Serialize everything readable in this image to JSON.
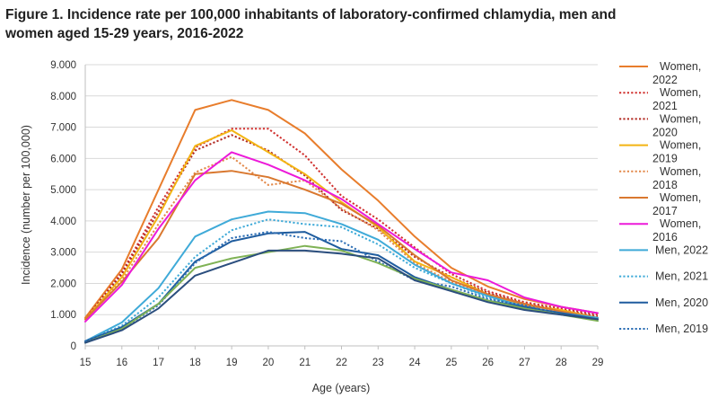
{
  "figure_title": "Figure 1. Incidence rate per 100,000 inhabitants of laboratory-confirmed chlamydia, men and women aged 15-29 years, 2016-2022",
  "chart_data": {
    "type": "line",
    "title": "Figure 1. Incidence rate per 100,000 inhabitants of laboratory-confirmed chlamydia, men and women aged 15-29 years, 2016-2022",
    "xlabel": "Age (years)",
    "ylabel": "Incidence (number per 100,000)",
    "x": [
      15,
      16,
      17,
      18,
      19,
      20,
      21,
      22,
      23,
      24,
      25,
      26,
      27,
      28,
      29
    ],
    "ylim": [
      0,
      9000
    ],
    "yticks": [
      0,
      1000,
      2000,
      3000,
      4000,
      5000,
      6000,
      7000,
      8000,
      9000
    ],
    "ytick_labels": [
      "0",
      "1.000",
      "2.000",
      "3.000",
      "4.000",
      "5.000",
      "6.000",
      "7.000",
      "8.000",
      "9.000"
    ],
    "grid": "horizontal",
    "legend_position": "right",
    "series": [
      {
        "name": "Women, 2022",
        "color": "#E87D2C",
        "dash": "solid",
        "values": [
          900,
          2450,
          5000,
          7550,
          7870,
          7550,
          6800,
          5650,
          4650,
          3500,
          2500,
          1900,
          1500,
          1250,
          1050
        ]
      },
      {
        "name": "Women, 2021",
        "color": "#D0302E",
        "dash": "dotted",
        "values": [
          850,
          2350,
          4450,
          6350,
          6950,
          6950,
          6100,
          4800,
          4050,
          3150,
          2300,
          1750,
          1400,
          1200,
          1000
        ]
      },
      {
        "name": "Women, 2020",
        "color": "#B22A22",
        "dash": "dotted",
        "values": [
          850,
          2300,
          4300,
          6250,
          6750,
          6250,
          5450,
          4350,
          3750,
          2850,
          2200,
          1700,
          1350,
          1150,
          950
        ]
      },
      {
        "name": "Women, 2019",
        "color": "#F3B413",
        "dash": "solid",
        "values": [
          850,
          2200,
          4150,
          6400,
          6900,
          6200,
          5500,
          4600,
          3800,
          2700,
          2200,
          1650,
          1300,
          1150,
          900
        ]
      },
      {
        "name": "Women, 2018",
        "color": "#E3894A",
        "dash": "dotted",
        "values": [
          850,
          2100,
          3900,
          5550,
          6050,
          5150,
          5300,
          4400,
          3700,
          2650,
          2050,
          1600,
          1300,
          1100,
          900
        ]
      },
      {
        "name": "Women, 2017",
        "color": "#D9782F",
        "dash": "solid",
        "values": [
          850,
          2050,
          3450,
          5500,
          5600,
          5400,
          5000,
          4550,
          3850,
          2900,
          2100,
          1650,
          1350,
          1100,
          900
        ]
      },
      {
        "name": "Women, 2016",
        "color": "#EC1AD9",
        "dash": "solid",
        "values": [
          780,
          1950,
          3750,
          5300,
          6200,
          5800,
          5300,
          4700,
          3900,
          3100,
          2350,
          2100,
          1550,
          1250,
          1050
        ]
      },
      {
        "name": "Men, 2022",
        "color": "#3FAAD8",
        "dash": "solid",
        "values": [
          150,
          750,
          1850,
          3500,
          4050,
          4300,
          4250,
          3900,
          3400,
          2600,
          2000,
          1600,
          1250,
          1050,
          900
        ]
      },
      {
        "name": "Men, 2021",
        "color": "#3FAAD8",
        "dash": "dotted",
        "values": [
          150,
          650,
          1550,
          2850,
          3700,
          4050,
          3900,
          3800,
          3250,
          2500,
          2000,
          1550,
          1250,
          1050,
          850
        ]
      },
      {
        "name": "Men, 2020",
        "color": "#1F5C9E",
        "dash": "solid",
        "values": [
          150,
          600,
          1350,
          2700,
          3350,
          3600,
          3650,
          3100,
          2900,
          2200,
          1800,
          1450,
          1250,
          1050,
          850
        ]
      },
      {
        "name": "Men, 2019",
        "color": "#2E6FB5",
        "dash": "dotted",
        "values": [
          150,
          550,
          1300,
          2650,
          3450,
          3650,
          3450,
          3350,
          2700,
          2100,
          1900,
          1500,
          1300,
          1000,
          850
        ]
      },
      {
        "color": "#7FB255",
        "dash": "solid",
        "values": [
          100,
          550,
          1350,
          2500,
          2800,
          3000,
          3200,
          3050,
          2650,
          2150,
          1800,
          1450,
          1200,
          1000,
          800
        ]
      },
      {
        "color": "#2B4E7E",
        "dash": "solid",
        "values": [
          100,
          500,
          1200,
          2250,
          2650,
          3050,
          3050,
          2950,
          2800,
          2100,
          1750,
          1400,
          1150,
          1000,
          850
        ]
      }
    ]
  }
}
